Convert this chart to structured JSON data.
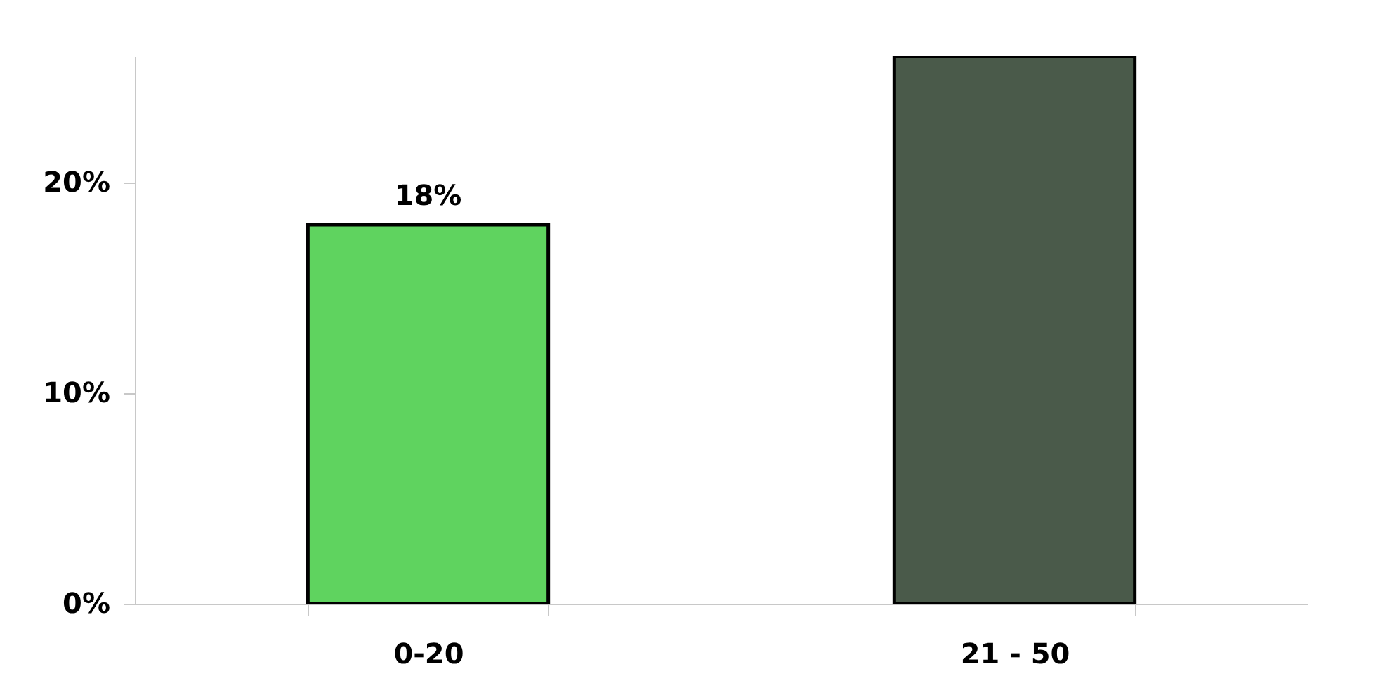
{
  "chart_data": {
    "type": "bar",
    "categories": [
      "0-20",
      "21 - 50"
    ],
    "values": [
      18,
      26
    ],
    "colors": [
      "#5fd35f",
      "#4a5a4a"
    ],
    "value_labels": [
      "18%",
      null
    ],
    "ylim": [
      0,
      26
    ],
    "yticks": [
      {
        "value": 0,
        "label": "0%"
      },
      {
        "value": 10,
        "label": "10%"
      },
      {
        "value": 20,
        "label": "20%"
      }
    ],
    "grid": false
  }
}
